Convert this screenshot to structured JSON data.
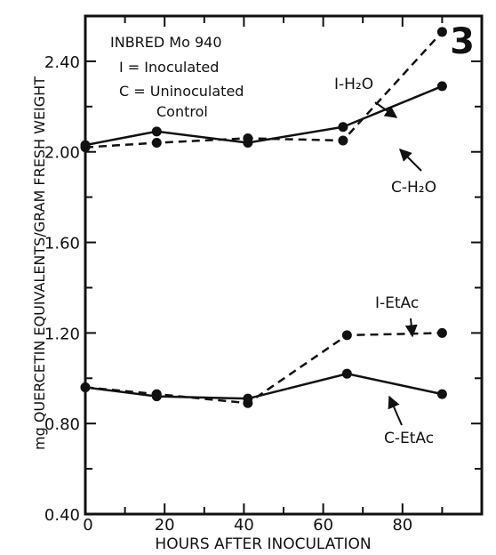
{
  "chart_data": {
    "type": "line",
    "panel_label": "3",
    "xlabel": "HOURS AFTER INOCULATION",
    "ylabel": "mg QUERCETIN EQUIVALENTS/GRAM FRESH WEIGHT",
    "xlim": [
      0,
      100
    ],
    "ylim": [
      0.4,
      2.6
    ],
    "x_ticks": [
      0,
      20,
      40,
      60,
      80
    ],
    "y_ticks": [
      0.4,
      0.8,
      1.2,
      1.6,
      2.0,
      2.4
    ],
    "y_tick_labels": [
      "0.40",
      "0.80",
      "1.20",
      "1.60",
      "2.00",
      "2.40"
    ],
    "legend_lines": [
      "INBRED Mo 940",
      "I = Inoculated",
      "C = Uninoculated",
      "Control"
    ],
    "grid": false,
    "color": "#111111",
    "series": [
      {
        "name": "I-H₂O",
        "style": "dashed",
        "x": [
          0,
          18,
          41,
          65,
          90
        ],
        "y": [
          2.02,
          2.04,
          2.06,
          2.05,
          2.53
        ]
      },
      {
        "name": "C-H₂O",
        "style": "solid",
        "x": [
          0,
          18,
          41,
          65,
          90
        ],
        "y": [
          2.03,
          2.09,
          2.04,
          2.11,
          2.29
        ]
      },
      {
        "name": "I-EtAc",
        "style": "dashed",
        "x": [
          0,
          18,
          41,
          66,
          90
        ],
        "y": [
          0.96,
          0.93,
          0.89,
          1.19,
          1.2
        ]
      },
      {
        "name": "C-EtAc",
        "style": "solid",
        "x": [
          0,
          18,
          41,
          66,
          90
        ],
        "y": [
          0.96,
          0.92,
          0.91,
          1.02,
          0.93
        ]
      }
    ]
  }
}
